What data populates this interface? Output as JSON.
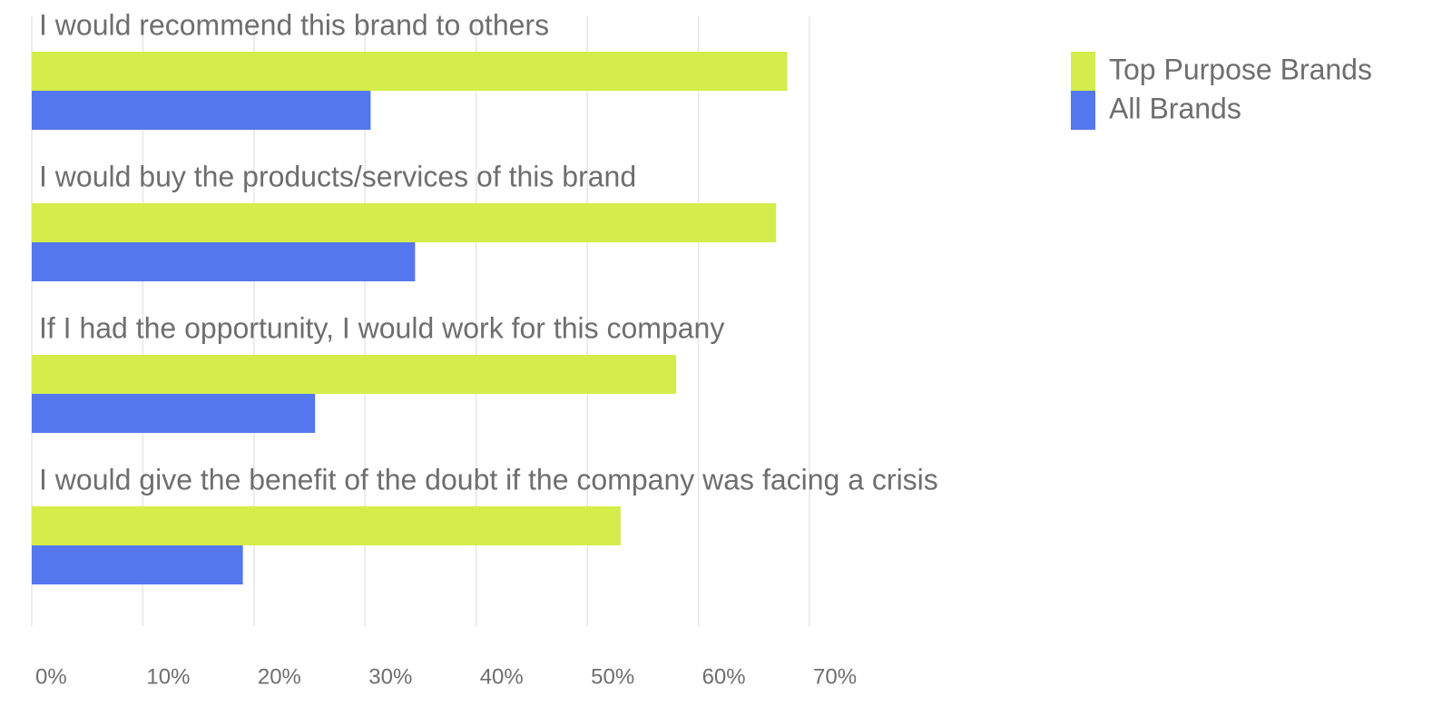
{
  "chart_data": {
    "type": "hbar",
    "categories": [
      "I would recommend this brand to others",
      "I would buy the products/services of this brand",
      "If I had the opportunity, I would work for this company",
      "I would give the benefit of the doubt if the company was facing a crisis"
    ],
    "series": [
      {
        "name": "Top Purpose Brands",
        "color": "#d4ed4b",
        "values": [
          68,
          67,
          58,
          53
        ]
      },
      {
        "name": "All Brands",
        "color": "#5477ee",
        "values": [
          30.5,
          34.5,
          25.5,
          19
        ]
      }
    ],
    "xlim": [
      0,
      70
    ],
    "xticks": [
      {
        "value": 0,
        "label": "0%"
      },
      {
        "value": 10,
        "label": "10%"
      },
      {
        "value": 20,
        "label": "20%"
      },
      {
        "value": 30,
        "label": "30%"
      },
      {
        "value": 40,
        "label": "40%"
      },
      {
        "value": 50,
        "label": "50%"
      },
      {
        "value": 60,
        "label": "60%"
      },
      {
        "value": 70,
        "label": "70%"
      }
    ],
    "grid": true,
    "legend": "top-right"
  }
}
